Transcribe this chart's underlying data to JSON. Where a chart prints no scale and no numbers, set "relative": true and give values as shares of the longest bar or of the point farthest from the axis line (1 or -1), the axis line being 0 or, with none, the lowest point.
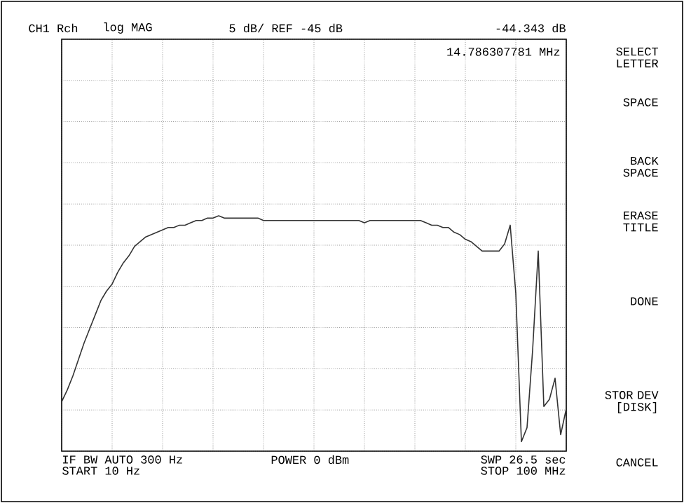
{
  "chart_data": {
    "type": "line",
    "relative": true,
    "grid": true,
    "color": "#333333",
    "categories": [
      null,
      null,
      null,
      null,
      null,
      null,
      null,
      null,
      null,
      null,
      null,
      null,
      null,
      null,
      null,
      null,
      null,
      null,
      null,
      null,
      null,
      null,
      null,
      null,
      null,
      null,
      null,
      null,
      null,
      null,
      null,
      null,
      null,
      null,
      null,
      null,
      null,
      null,
      null,
      null,
      null,
      null,
      null,
      null,
      null,
      null,
      null,
      null,
      null,
      null,
      null,
      null,
      null,
      null,
      null,
      null,
      null,
      null,
      null,
      null,
      null,
      null,
      null,
      null,
      null,
      null,
      null,
      null,
      null,
      null,
      null,
      null,
      null,
      null,
      null,
      null,
      null,
      null,
      null,
      null,
      null,
      null,
      null,
      null,
      null,
      null,
      null,
      null,
      null,
      null,
      null
    ],
    "values": [
      0.21,
      0.26,
      0.32,
      0.39,
      0.46,
      0.52,
      0.58,
      0.64,
      0.68,
      0.71,
      0.76,
      0.8,
      0.83,
      0.87,
      0.89,
      0.91,
      0.92,
      0.93,
      0.94,
      0.95,
      0.95,
      0.96,
      0.96,
      0.97,
      0.98,
      0.98,
      0.99,
      0.99,
      1,
      0.99,
      0.99,
      0.99,
      0.99,
      0.99,
      0.99,
      0.99,
      0.98,
      0.98,
      0.98,
      0.98,
      0.98,
      0.98,
      0.98,
      0.98,
      0.98,
      0.98,
      0.98,
      0.98,
      0.98,
      0.98,
      0.98,
      0.98,
      0.98,
      0.98,
      0.97,
      0.98,
      0.98,
      0.98,
      0.98,
      0.98,
      0.98,
      0.98,
      0.98,
      0.98,
      0.98,
      0.97,
      0.96,
      0.96,
      0.95,
      0.95,
      0.93,
      0.92,
      0.9,
      0.89,
      0.87,
      0.85,
      0.85,
      0.85,
      0.85,
      0.88,
      0.96,
      0.67,
      0.04,
      0.1,
      0.43,
      0.85,
      0.19,
      0.22,
      0.31,
      0.07,
      0.18
    ],
    "annotations": [
      "CH1 Rch",
      "log MAG",
      "5 dB/ REF -45 dB",
      "-44.343 dB",
      "14.786307781 MHz",
      "IF BW AUTO 300 Hz",
      "START 10 Hz",
      "POWER 0 dBm",
      "SWP 26.5 sec",
      "STOP 100 MHz",
      "SELECT LETTER",
      "SPACE",
      "BACK SPACE",
      "ERASE TITLE",
      "DONE",
      "STOR DEV [DISK]",
      "CANCEL"
    ]
  }
}
